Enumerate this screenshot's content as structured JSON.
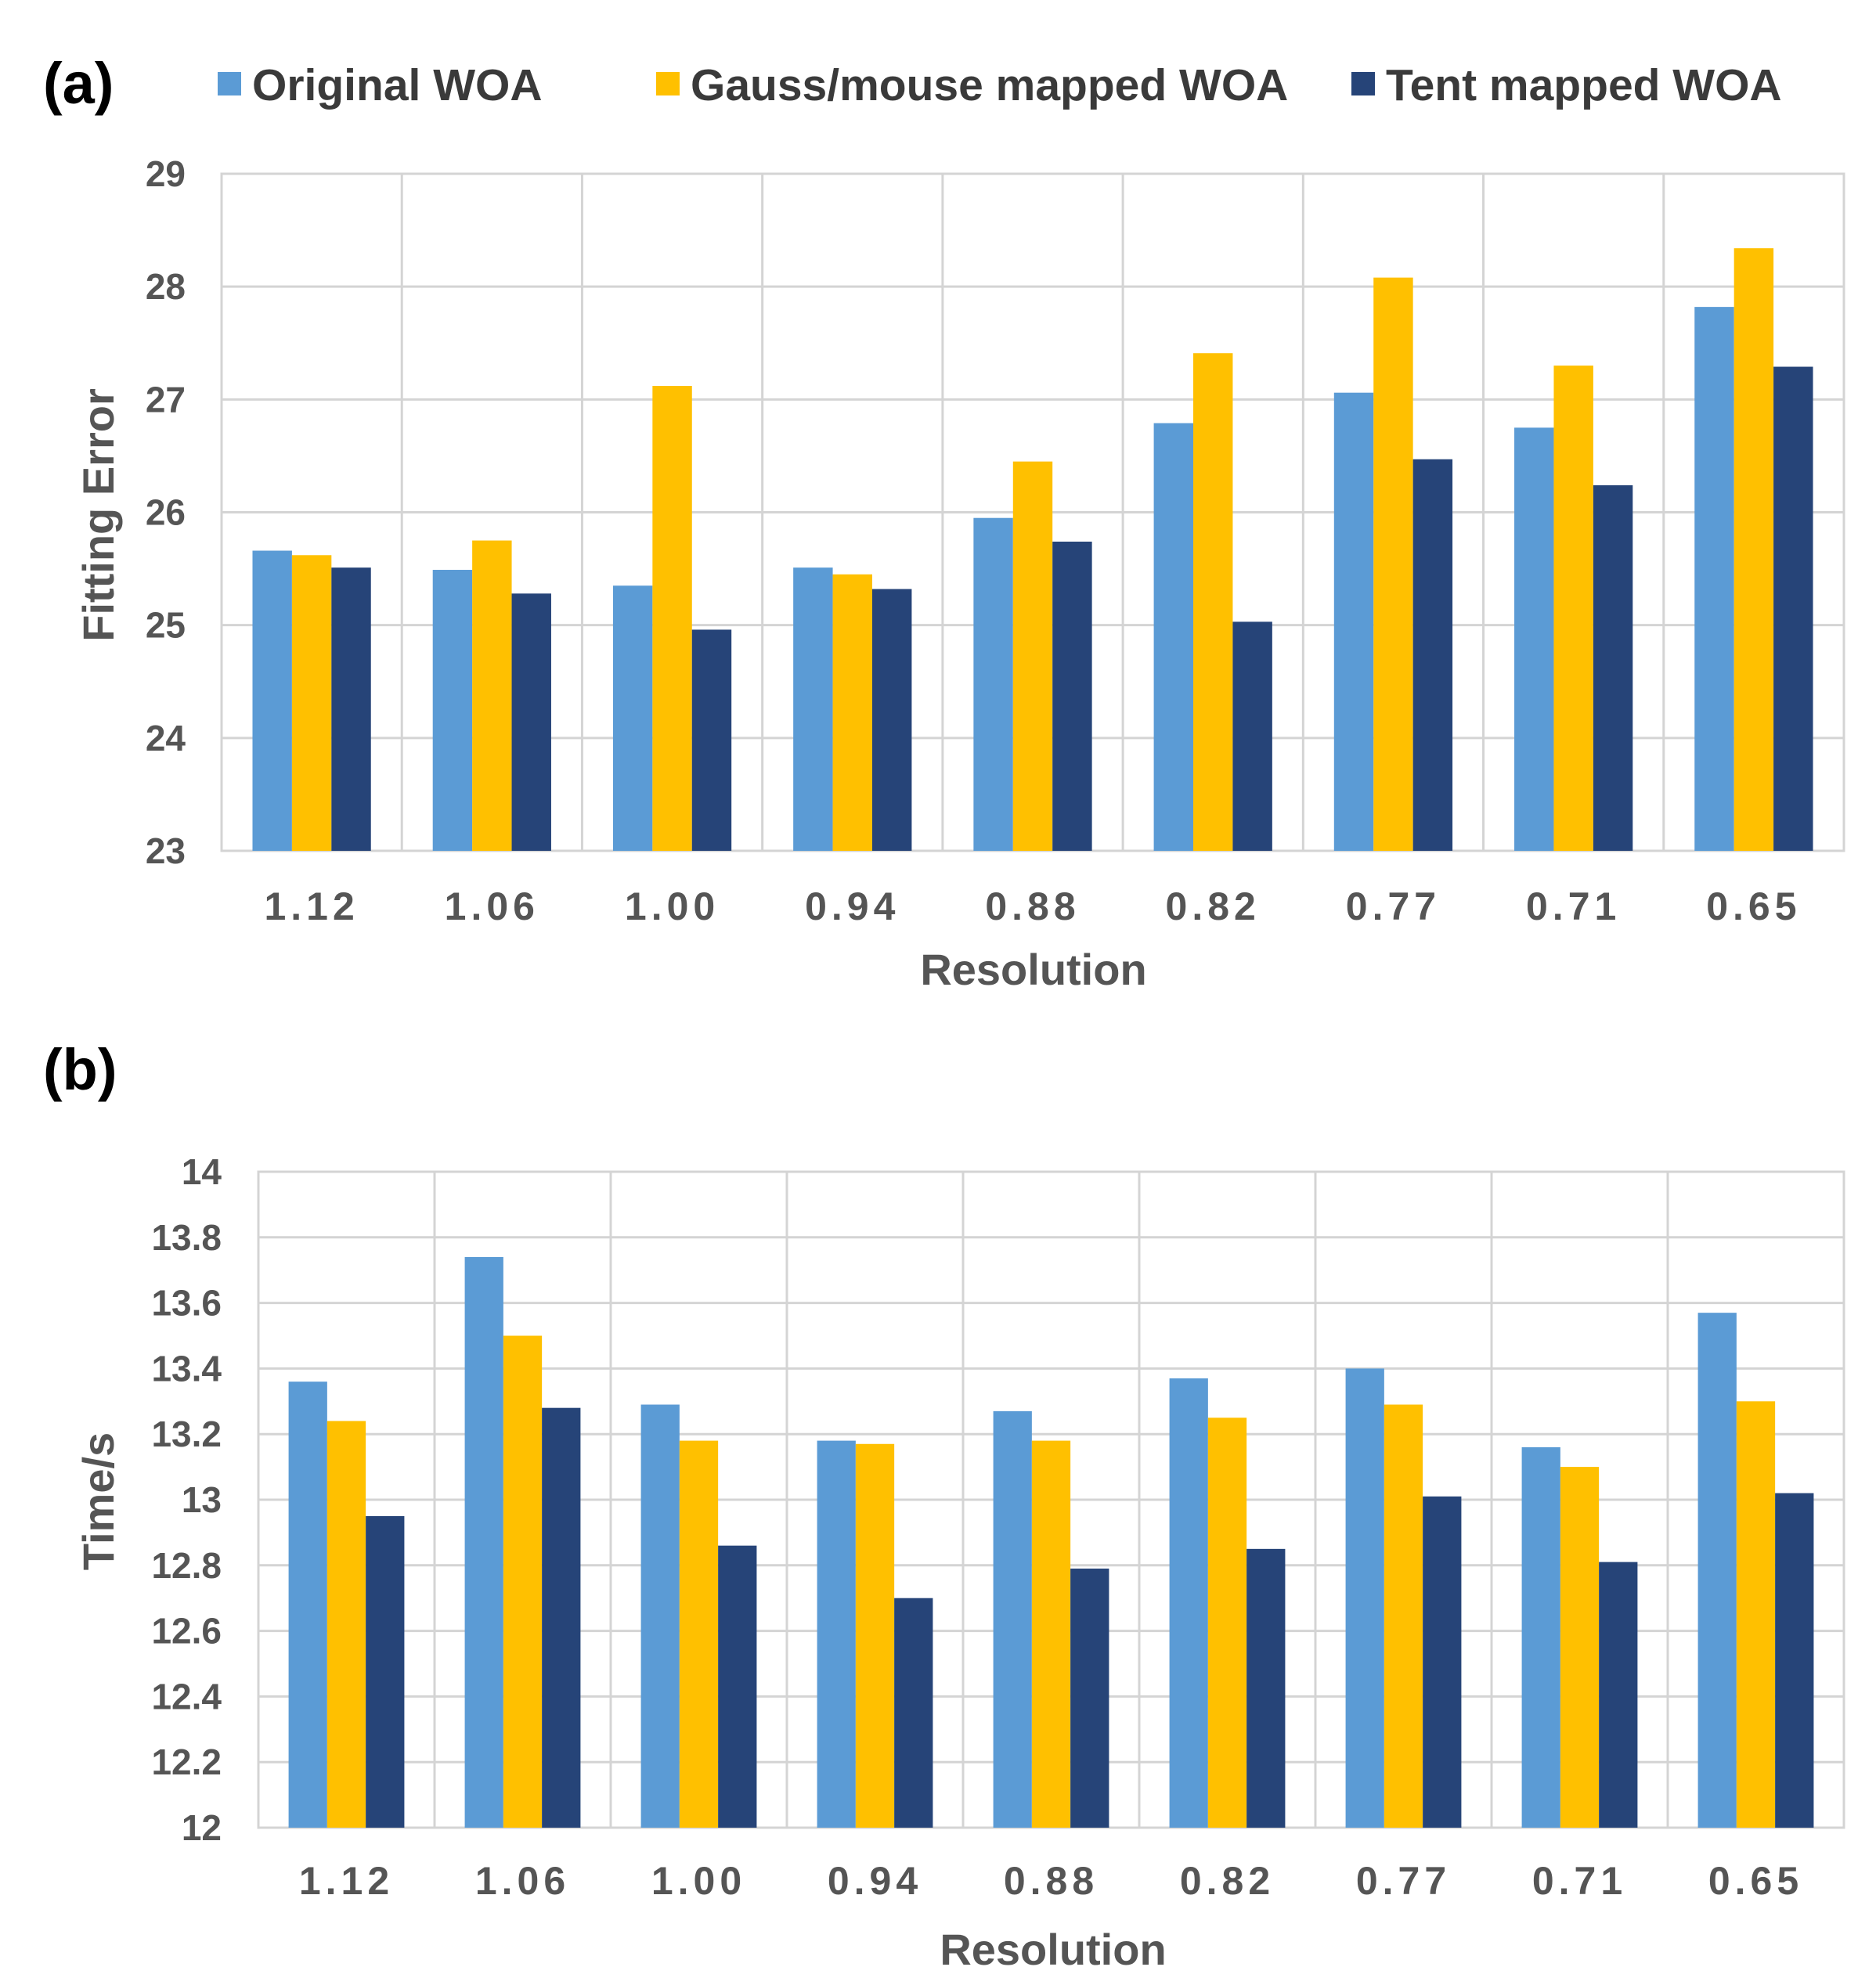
{
  "legend": {
    "items": [
      {
        "name": "Original WOA",
        "color": "#5b9bd5"
      },
      {
        "name": "Gauss/mouse mapped WOA",
        "color": "#ffc000"
      },
      {
        "name": "Tent mapped WOA",
        "color": "#264478"
      }
    ]
  },
  "chart_data": [
    {
      "panel_label": "(a)",
      "type": "bar",
      "title": "",
      "xlabel": "Resolution",
      "ylabel": "Fitting Error",
      "ylim": [
        23,
        29
      ],
      "yticks": [
        "23",
        "24",
        "25",
        "26",
        "27",
        "28",
        "29"
      ],
      "grid": true,
      "categories": [
        "1.12",
        "1.06",
        "1.00",
        "0.94",
        "0.88",
        "0.82",
        "0.77",
        "0.71",
        "0.65"
      ],
      "series": [
        {
          "name": "Original WOA",
          "values": [
            25.66,
            25.49,
            25.35,
            25.51,
            25.95,
            26.79,
            27.06,
            26.75,
            27.82
          ]
        },
        {
          "name": "Gauss/mouse mapped WOA",
          "values": [
            25.62,
            25.75,
            27.12,
            25.45,
            26.45,
            27.41,
            28.08,
            27.3,
            28.34
          ]
        },
        {
          "name": "Tent mapped WOA",
          "values": [
            25.51,
            25.28,
            24.96,
            25.32,
            25.74,
            25.03,
            26.47,
            26.24,
            27.29
          ]
        }
      ]
    },
    {
      "panel_label": "(b)",
      "type": "bar",
      "title": "",
      "xlabel": "Resolution",
      "ylabel": "Time/s",
      "ylim": [
        12,
        14
      ],
      "yticks": [
        "12",
        "12.2",
        "12.4",
        "12.6",
        "12.8",
        "13",
        "13.2",
        "13.4",
        "13.6",
        "13.8",
        "14"
      ],
      "grid": true,
      "categories": [
        "1.12",
        "1.06",
        "1.00",
        "0.94",
        "0.88",
        "0.82",
        "0.77",
        "0.71",
        "0.65"
      ],
      "series": [
        {
          "name": "Original WOA",
          "values": [
            13.36,
            13.74,
            13.29,
            13.18,
            13.27,
            13.37,
            13.4,
            13.16,
            13.57
          ]
        },
        {
          "name": "Gauss/mouse mapped WOA",
          "values": [
            13.24,
            13.5,
            13.18,
            13.17,
            13.18,
            13.25,
            13.29,
            13.1,
            13.3
          ]
        },
        {
          "name": "Tent mapped WOA",
          "values": [
            12.95,
            13.28,
            12.86,
            12.7,
            12.79,
            12.85,
            13.01,
            12.81,
            13.02
          ]
        }
      ]
    }
  ]
}
